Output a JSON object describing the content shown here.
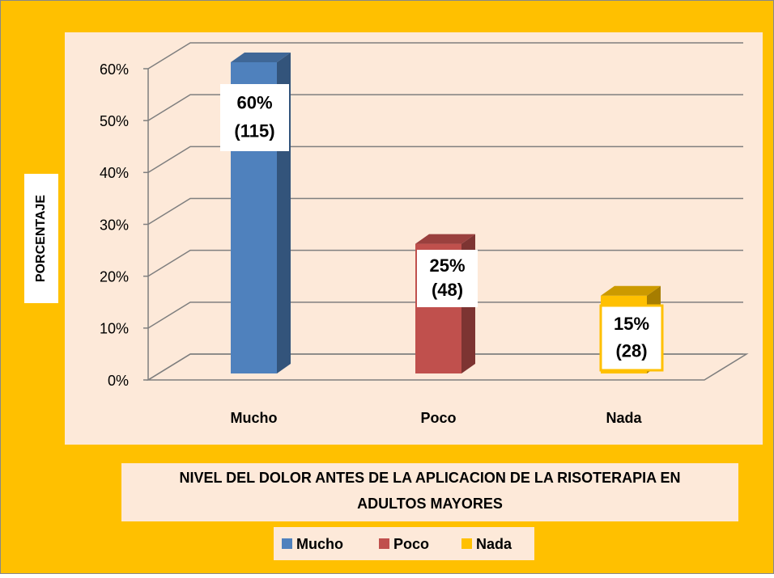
{
  "chart_data": {
    "type": "bar3d",
    "title": "NIVEL DEL DOLOR ANTES DE LA APLICACION DE LA RISOTERAPIA EN ADULTOS MAYORES",
    "y_label": "PORCENTAJE",
    "categories": [
      "Mucho",
      "Poco",
      "Nada"
    ],
    "values": [
      60,
      25,
      15
    ],
    "value_labels": [
      "60%",
      "25%",
      "15%"
    ],
    "count_labels": [
      "(115)",
      "(48)",
      "(28)"
    ],
    "colors": [
      "#4f81bd",
      "#c0504d",
      "#ffc000"
    ],
    "ylim": [
      0,
      60
    ],
    "yticks": [
      {
        "value": 0,
        "label": "0%"
      },
      {
        "value": 10,
        "label": "10%"
      },
      {
        "value": 20,
        "label": "20%"
      },
      {
        "value": 30,
        "label": "30%"
      },
      {
        "value": 40,
        "label": "40%"
      },
      {
        "value": 50,
        "label": "50%"
      },
      {
        "value": 60,
        "label": "60%"
      }
    ],
    "grid": true,
    "legend": "bottom"
  }
}
